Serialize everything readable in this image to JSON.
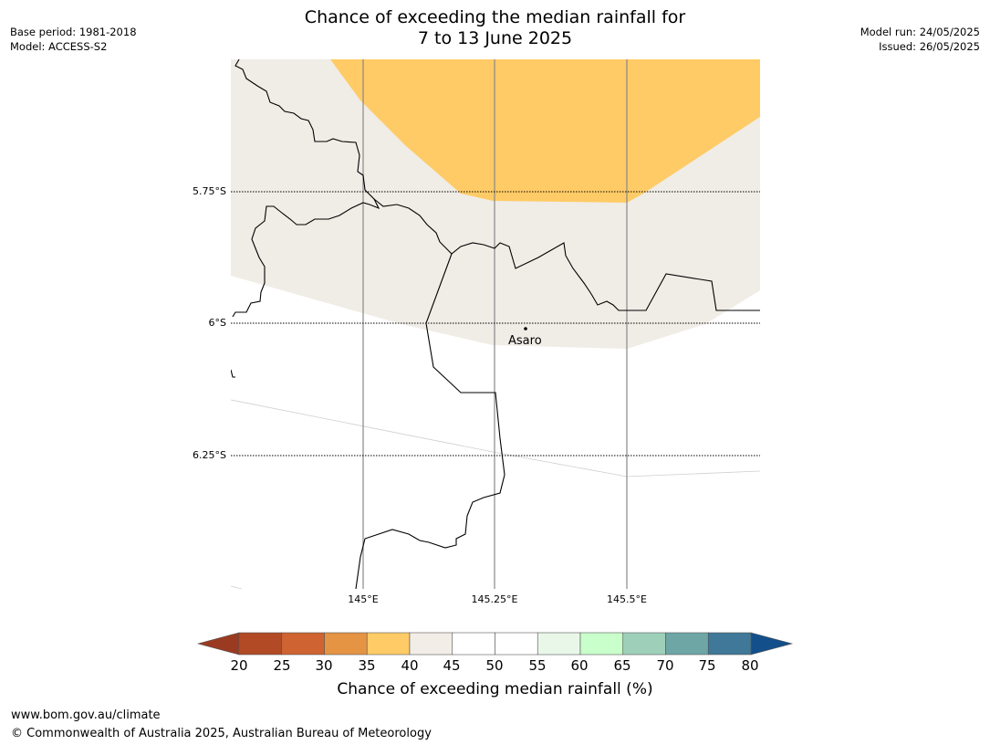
{
  "title_line1": "Chance of exceeding the median rainfall for",
  "title_line2": "7 to 13 June 2025",
  "meta_left": {
    "base_period": "Base period: 1981-2018",
    "model": "Model: ACCESS-S2"
  },
  "meta_right": {
    "model_run": "Model run: 24/05/2025",
    "issued": "Issued: 26/05/2025"
  },
  "lat_labels": [
    "5.75°S",
    "6°S",
    "6.25°S"
  ],
  "lon_labels": [
    "145°E",
    "145.25°E",
    "145.5°E"
  ],
  "place": {
    "name": "Asaro"
  },
  "colorbar": {
    "ticks": [
      "20",
      "25",
      "30",
      "35",
      "40",
      "45",
      "50",
      "55",
      "60",
      "65",
      "70",
      "75",
      "80"
    ],
    "label": "Chance of exceeding median rainfall (%)",
    "under_color": "#9a3a21",
    "over_color": "#134f8a",
    "colors": [
      "#b24a25",
      "#cf6331",
      "#e49443",
      "#ffcb66",
      "#f2ede6",
      "#ffffff",
      "#ffffff",
      "#e9f7e9",
      "#c8ffcb",
      "#9ed0b9",
      "#6ea6a6",
      "#3f7898"
    ]
  },
  "map_colors": {
    "orange": "#ffcb66",
    "beige": "#f0ece6"
  },
  "footer": {
    "url": "www.bom.gov.au/climate",
    "copyright": "© Commonwealth of Australia 2025, Australian Bureau of Meteorology"
  }
}
